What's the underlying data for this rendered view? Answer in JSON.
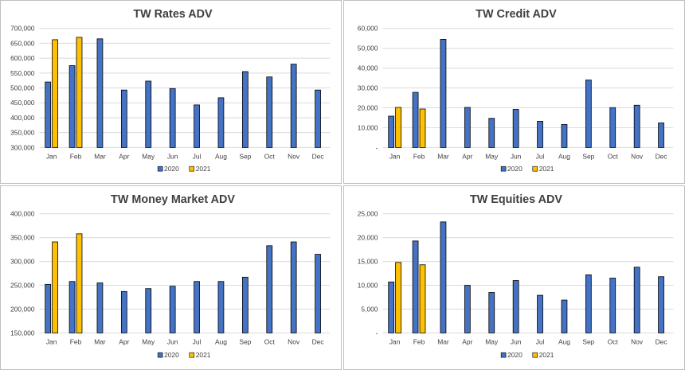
{
  "colors": {
    "series_2020": "#4472C4",
    "series_2021": "#FFC000",
    "bar_stroke": "#000000"
  },
  "chart_data": [
    {
      "type": "bar",
      "title": "TW Rates ADV",
      "categories": [
        "Jan",
        "Feb",
        "Mar",
        "Apr",
        "May",
        "Jun",
        "Jul",
        "Aug",
        "Sep",
        "Oct",
        "Nov",
        "Dec"
      ],
      "series": [
        {
          "name": "2020",
          "values": [
            520000,
            575000,
            665000,
            493000,
            523000,
            498000,
            443000,
            467000,
            555000,
            537000,
            580000,
            493000
          ]
        },
        {
          "name": "2021",
          "values": [
            662000,
            670000,
            null,
            null,
            null,
            null,
            null,
            null,
            null,
            null,
            null,
            null
          ]
        }
      ],
      "ylim": [
        300000,
        700000
      ],
      "yticks": [
        300000,
        350000,
        400000,
        450000,
        500000,
        550000,
        600000,
        650000,
        700000
      ],
      "ytick_labels": [
        "300,000",
        "350,000",
        "400,000",
        "450,000",
        "500,000",
        "550,000",
        "600,000",
        "650,000",
        "700,000"
      ],
      "legend": "bottom",
      "grid": true
    },
    {
      "type": "bar",
      "title": "TW Credit ADV",
      "categories": [
        "Jan",
        "Feb",
        "Mar",
        "Apr",
        "May",
        "Jun",
        "Jul",
        "Aug",
        "Sep",
        "Oct",
        "Nov",
        "Dec"
      ],
      "series": [
        {
          "name": "2020",
          "values": [
            15800,
            27800,
            54500,
            20200,
            14700,
            19200,
            13200,
            11600,
            34000,
            20100,
            21300,
            12400
          ]
        },
        {
          "name": "2021",
          "values": [
            20200,
            19400,
            null,
            null,
            null,
            null,
            null,
            null,
            null,
            null,
            null,
            null
          ]
        }
      ],
      "ylim": [
        0,
        60000
      ],
      "yticks": [
        0,
        10000,
        20000,
        30000,
        40000,
        50000,
        60000
      ],
      "ytick_labels": [
        "-",
        "10,000",
        "20,000",
        "30,000",
        "40,000",
        "50,000",
        "60,000"
      ],
      "legend": "bottom",
      "grid": true
    },
    {
      "type": "bar",
      "title": "TW Money Market ADV",
      "categories": [
        "Jan",
        "Feb",
        "Mar",
        "Apr",
        "May",
        "Jun",
        "Jul",
        "Aug",
        "Sep",
        "Oct",
        "Nov",
        "Dec"
      ],
      "series": [
        {
          "name": "2020",
          "values": [
            252000,
            258000,
            255000,
            237000,
            243000,
            248000,
            258000,
            258000,
            267000,
            333000,
            341000,
            315000
          ]
        },
        {
          "name": "2021",
          "values": [
            341000,
            358000,
            null,
            null,
            null,
            null,
            null,
            null,
            null,
            null,
            null,
            null
          ]
        }
      ],
      "ylim": [
        150000,
        400000
      ],
      "yticks": [
        150000,
        200000,
        250000,
        300000,
        350000,
        400000
      ],
      "ytick_labels": [
        "150,000",
        "200,000",
        "250,000",
        "300,000",
        "350,000",
        "400,000"
      ],
      "legend": "bottom",
      "grid": true
    },
    {
      "type": "bar",
      "title": "TW Equities ADV",
      "categories": [
        "Jan",
        "Feb",
        "Mar",
        "Apr",
        "May",
        "Jun",
        "Jul",
        "Aug",
        "Sep",
        "Oct",
        "Nov",
        "Dec"
      ],
      "series": [
        {
          "name": "2020",
          "values": [
            10700,
            19300,
            23300,
            10000,
            8500,
            11000,
            7900,
            6900,
            12200,
            11500,
            13800,
            11800
          ]
        },
        {
          "name": "2021",
          "values": [
            14800,
            14300,
            null,
            null,
            null,
            null,
            null,
            null,
            null,
            null,
            null,
            null
          ]
        }
      ],
      "ylim": [
        0,
        25000
      ],
      "yticks": [
        0,
        5000,
        10000,
        15000,
        20000,
        25000
      ],
      "ytick_labels": [
        "-",
        "5,000",
        "10,000",
        "15,000",
        "20,000",
        "25,000"
      ],
      "legend": "bottom",
      "grid": true
    }
  ]
}
